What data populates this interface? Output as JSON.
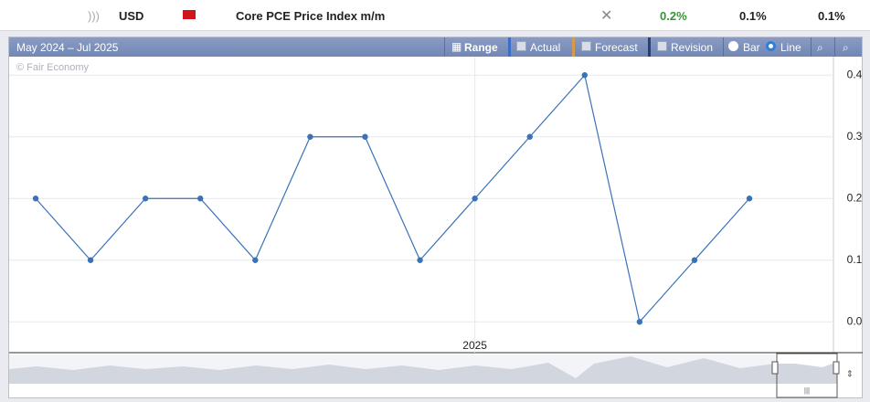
{
  "header": {
    "currency": "USD",
    "event": "Core PCE Price Index m/m",
    "actual": "0.2%",
    "forecast": "0.1%",
    "previous": "0.1%"
  },
  "toolbar": {
    "range_label": "May 2024 – Jul 2025",
    "range": "Range",
    "actual": "Actual",
    "forecast": "Forecast",
    "revision": "Revision",
    "bar": "Bar",
    "line": "Line"
  },
  "watermark": "© Fair Economy",
  "chart_data": {
    "type": "line",
    "categories": [
      null,
      null,
      null,
      null,
      null,
      null,
      null,
      null,
      "2025",
      null,
      null,
      null,
      null,
      null
    ],
    "values": [
      0.2,
      0.1,
      0.2,
      0.2,
      0.1,
      0.3,
      0.3,
      0.1,
      0.2,
      0.3,
      0.4,
      0.0,
      0.1,
      0.2
    ],
    "color": "#3a72b8",
    "ylim": [
      -0.05,
      0.43
    ],
    "yticks": [
      {
        "value": 0,
        "label": "0.0"
      },
      0.1,
      0.2,
      0.3,
      0.4
    ],
    "grid": true
  }
}
